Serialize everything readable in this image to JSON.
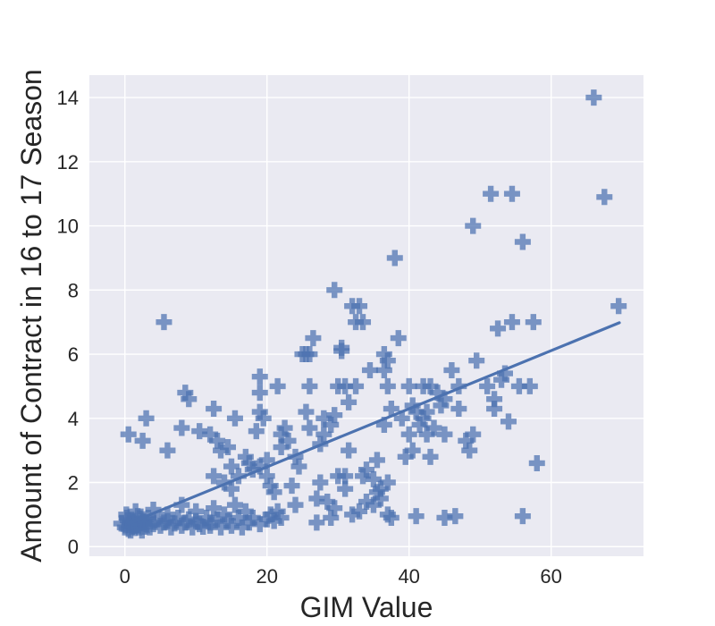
{
  "chart_data": {
    "type": "scatter",
    "title": "",
    "xlabel": "GIM Value",
    "ylabel": "Amount of Contract in 16 to 17 Season",
    "xlim": [
      -5,
      73
    ],
    "ylim": [
      -0.3,
      14.7
    ],
    "x_ticks": [
      0,
      20,
      40,
      60
    ],
    "y_ticks": [
      0,
      2,
      4,
      6,
      8,
      10,
      12,
      14
    ],
    "grid": true,
    "marker": "plus",
    "color": "#4c72b0",
    "background": "#eaeaf2",
    "trendline": {
      "x": [
        0.5,
        69.6
      ],
      "y": [
        0.72,
        6.98
      ]
    },
    "points": [
      [
        -0.5,
        0.72
      ],
      [
        0,
        0.6
      ],
      [
        0.3,
        0.9
      ],
      [
        0.5,
        0.55
      ],
      [
        0.7,
        0.75
      ],
      [
        1,
        0.62
      ],
      [
        1.2,
        0.8
      ],
      [
        1.4,
        0.58
      ],
      [
        1.6,
        0.7
      ],
      [
        1.8,
        0.95
      ],
      [
        2,
        0.6
      ],
      [
        2.2,
        0.72
      ],
      [
        2.5,
        0.85
      ],
      [
        2.8,
        0.62
      ],
      [
        3,
        0.7
      ],
      [
        3.3,
        0.9
      ],
      [
        0.2,
        1.0
      ],
      [
        0.8,
        0.5
      ],
      [
        1.5,
        1.1
      ],
      [
        2.4,
        0.5
      ],
      [
        0.6,
        0.68
      ],
      [
        1.1,
        0.74
      ],
      [
        1.9,
        0.66
      ],
      [
        2.7,
        0.78
      ],
      [
        0.4,
        0.82
      ],
      [
        1.3,
        0.64
      ],
      [
        2.1,
        0.88
      ],
      [
        3.5,
        0.6
      ],
      [
        4,
        0.7
      ],
      [
        4.5,
        0.85
      ],
      [
        5,
        0.65
      ],
      [
        5.5,
        0.75
      ],
      [
        6,
        0.8
      ],
      [
        6.5,
        0.6
      ],
      [
        7,
        0.72
      ],
      [
        7.5,
        0.9
      ],
      [
        8,
        0.65
      ],
      [
        8.5,
        0.75
      ],
      [
        9,
        0.85
      ],
      [
        9.5,
        0.6
      ],
      [
        10,
        0.8
      ],
      [
        10.5,
        0.7
      ],
      [
        11,
        0.62
      ],
      [
        11.5,
        0.9
      ],
      [
        12,
        0.75
      ],
      [
        12.5,
        1.2
      ],
      [
        13,
        0.85
      ],
      [
        13.5,
        0.6
      ],
      [
        14,
        1.0
      ],
      [
        14.5,
        0.8
      ],
      [
        15,
        0.65
      ],
      [
        15.5,
        1.3
      ],
      [
        16,
        0.9
      ],
      [
        16.5,
        0.6
      ],
      [
        17,
        1.1
      ],
      [
        17.5,
        0.75
      ],
      [
        18,
        0.9
      ],
      [
        19,
        0.7
      ],
      [
        20,
        0.85
      ],
      [
        20.5,
        1.0
      ],
      [
        21,
        0.8
      ],
      [
        21.5,
        1.1
      ],
      [
        22,
        0.9
      ],
      [
        8,
        1.3
      ],
      [
        10,
        1.1
      ],
      [
        12,
        0.65
      ],
      [
        6,
        1.0
      ],
      [
        4,
        1.15
      ],
      [
        0.5,
        3.5
      ],
      [
        2.5,
        3.3
      ],
      [
        3,
        4.0
      ],
      [
        5.5,
        7.0
      ],
      [
        6,
        3.0
      ],
      [
        8,
        3.7
      ],
      [
        8.5,
        4.8
      ],
      [
        9,
        4.6
      ],
      [
        10.5,
        3.6
      ],
      [
        12,
        3.5
      ],
      [
        12.5,
        2.2
      ],
      [
        12.5,
        4.3
      ],
      [
        13,
        3.3
      ],
      [
        13.5,
        3.0
      ],
      [
        14,
        2.0
      ],
      [
        14.5,
        3.1
      ],
      [
        15,
        2.5
      ],
      [
        15.5,
        4.0
      ],
      [
        15,
        1.8
      ],
      [
        16,
        2.2
      ],
      [
        17,
        2.8
      ],
      [
        17.5,
        2.6
      ],
      [
        18,
        2.4
      ],
      [
        18.5,
        3.6
      ],
      [
        19,
        2.5
      ],
      [
        19,
        4.2
      ],
      [
        19,
        4.8
      ],
      [
        19,
        5.3
      ],
      [
        19.5,
        4.0
      ],
      [
        20,
        2.7
      ],
      [
        20,
        2.2
      ],
      [
        20.5,
        1.9
      ],
      [
        21,
        1.7
      ],
      [
        21.5,
        5.0
      ],
      [
        22,
        3.5
      ],
      [
        22,
        3.1
      ],
      [
        22.5,
        3.7
      ],
      [
        23,
        3.3
      ],
      [
        23.5,
        1.9
      ],
      [
        24,
        1.3
      ],
      [
        24,
        2.8
      ],
      [
        24.5,
        2.5
      ],
      [
        25,
        6.0
      ],
      [
        25.5,
        4.2
      ],
      [
        25.5,
        6.0
      ],
      [
        26,
        3.7
      ],
      [
        26,
        5.0
      ],
      [
        26,
        6.0
      ],
      [
        26.5,
        6.5
      ],
      [
        27,
        0.75
      ],
      [
        27,
        1.5
      ],
      [
        27.5,
        2.0
      ],
      [
        27.5,
        3.2
      ],
      [
        28,
        3.5
      ],
      [
        28,
        4.0
      ],
      [
        28.5,
        1.4
      ],
      [
        29,
        0.9
      ],
      [
        29,
        3.8
      ],
      [
        29.5,
        1.2
      ],
      [
        29.5,
        4.1
      ],
      [
        29.5,
        8.0
      ],
      [
        30,
        2.2
      ],
      [
        30,
        5.0
      ],
      [
        30.5,
        6.1
      ],
      [
        30.5,
        6.2
      ],
      [
        31,
        1.8
      ],
      [
        31,
        2.2
      ],
      [
        31,
        5.0
      ],
      [
        31.5,
        3.0
      ],
      [
        31.5,
        4.5
      ],
      [
        32,
        7.5
      ],
      [
        32,
        1.0
      ],
      [
        32.5,
        7.0
      ],
      [
        32.5,
        5.0
      ],
      [
        33,
        7.5
      ],
      [
        33.5,
        7.0
      ],
      [
        33,
        1.1
      ],
      [
        33.5,
        2.2
      ],
      [
        34,
        2.4
      ],
      [
        34,
        1.4
      ],
      [
        34.5,
        5.5
      ],
      [
        35,
        2.1
      ],
      [
        35,
        1.3
      ],
      [
        35.5,
        1.7
      ],
      [
        35.5,
        2.7
      ],
      [
        36,
        1.5
      ],
      [
        36,
        1.8
      ],
      [
        36.5,
        3.8
      ],
      [
        36.5,
        5.5
      ],
      [
        36.5,
        6.0
      ],
      [
        37,
        1.0
      ],
      [
        37,
        2.0
      ],
      [
        37,
        5.0
      ],
      [
        37,
        5.8
      ],
      [
        37.5,
        0.9
      ],
      [
        37.5,
        4.3
      ],
      [
        38,
        9.0
      ],
      [
        38.5,
        6.5
      ],
      [
        39,
        4.0
      ],
      [
        39.5,
        2.8
      ],
      [
        40,
        3.5
      ],
      [
        40,
        5.0
      ],
      [
        40.5,
        3.0
      ],
      [
        40.5,
        4.4
      ],
      [
        41,
        0.95
      ],
      [
        41,
        4.2
      ],
      [
        41.5,
        3.8
      ],
      [
        42,
        4.0
      ],
      [
        42,
        5.0
      ],
      [
        42.5,
        3.5
      ],
      [
        42.5,
        4.2
      ],
      [
        43,
        2.8
      ],
      [
        43,
        5.0
      ],
      [
        43.5,
        3.7
      ],
      [
        44,
        4.8
      ],
      [
        44.5,
        4.4
      ],
      [
        45,
        0.9
      ],
      [
        45,
        3.5
      ],
      [
        45,
        4.6
      ],
      [
        46,
        5.5
      ],
      [
        46.5,
        0.95
      ],
      [
        47,
        4.3
      ],
      [
        47,
        5.0
      ],
      [
        48,
        3.3
      ],
      [
        48.5,
        3.0
      ],
      [
        49,
        3.5
      ],
      [
        49,
        10.0
      ],
      [
        49.5,
        5.8
      ],
      [
        51,
        5.0
      ],
      [
        51.5,
        11.0
      ],
      [
        52,
        4.3
      ],
      [
        52,
        4.6
      ],
      [
        52.5,
        6.8
      ],
      [
        53,
        5.2
      ],
      [
        53.5,
        5.4
      ],
      [
        54,
        3.9
      ],
      [
        54.5,
        7.0
      ],
      [
        54.5,
        11.0
      ],
      [
        55.5,
        5.0
      ],
      [
        56,
        0.95
      ],
      [
        56,
        9.5
      ],
      [
        57,
        5.0
      ],
      [
        57.5,
        7.0
      ],
      [
        58,
        2.6
      ],
      [
        66,
        14.0
      ],
      [
        67.5,
        10.9
      ],
      [
        69.5,
        7.5
      ]
    ]
  }
}
